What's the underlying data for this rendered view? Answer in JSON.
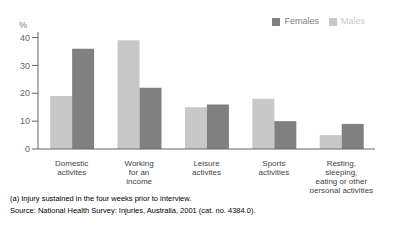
{
  "chart_data": {
    "type": "bar",
    "categories": [
      "Domestic\nactivites",
      "Working\nfor an\nincome",
      "Leisure\nactivites",
      "Sports\nactivities",
      "Resting,\nsleeping,\neating or other\npersonal activities"
    ],
    "series": [
      {
        "name": "Males",
        "color": "#c8c8c8",
        "values": [
          19,
          39,
          15,
          18,
          5
        ]
      },
      {
        "name": "Females",
        "color": "#808080",
        "values": [
          36,
          22,
          16,
          10,
          9
        ]
      }
    ],
    "ylabel": "%",
    "ylim": [
      0,
      42
    ],
    "yticks": [
      0,
      10,
      20,
      30,
      40
    ],
    "grid": false,
    "legend": "upper right",
    "annotations": [
      "(a) Injury sustained in the four weeks prior to interview.",
      "Source: National Health Survey: Injuries, Australia, 2001 (cat. no. 4384.0)."
    ]
  }
}
